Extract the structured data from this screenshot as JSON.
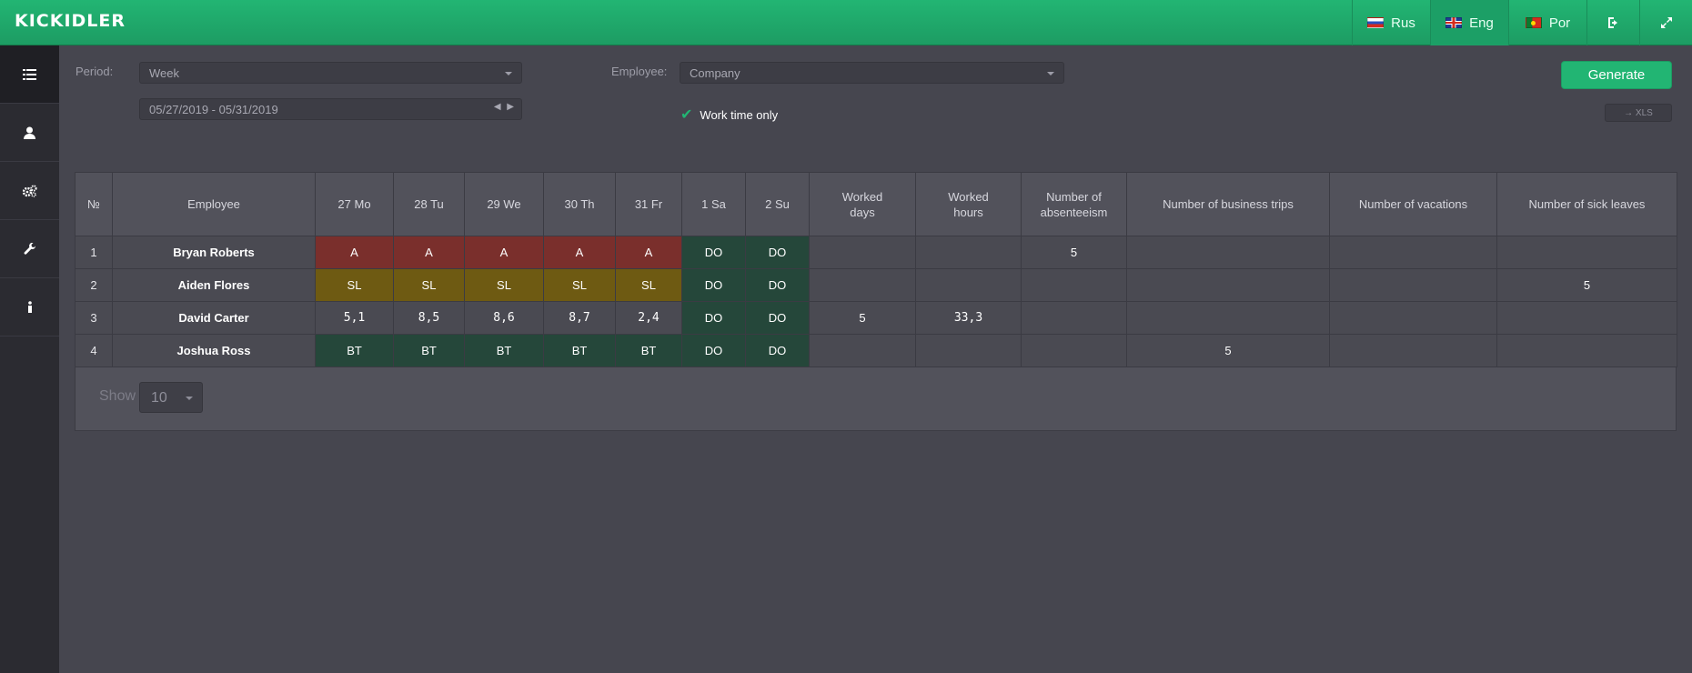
{
  "app": {
    "logo": "KICKIDLER"
  },
  "topnav": {
    "languages": [
      {
        "label": "Rus",
        "flag": "ru-flag-icon"
      },
      {
        "label": "Eng",
        "flag": "uk-flag-icon"
      },
      {
        "label": "Por",
        "flag": "pt-flag-icon"
      }
    ],
    "logout_icon": "logout-icon",
    "fullscreen_icon": "fullscreen-icon"
  },
  "sidebar": {
    "items": [
      {
        "icon": "list-icon"
      },
      {
        "icon": "user-icon"
      },
      {
        "icon": "gears-icon"
      },
      {
        "icon": "wrench-icon"
      },
      {
        "icon": "info-icon"
      }
    ]
  },
  "filters": {
    "period_label": "Period:",
    "period_value": "Week",
    "date_range": "05/27/2019 - 05/31/2019",
    "employee_label": "Employee:",
    "employee_value": "Company",
    "work_time_only": "Work time only",
    "generate_label": "Generate",
    "xls_label": "→ XLS"
  },
  "table": {
    "headers": {
      "no": "№",
      "employee": "Employee",
      "d1": "27 Mo",
      "d2": "28 Tu",
      "d3": "29 We",
      "d4": "30 Th",
      "d5": "31 Fr",
      "d6": "1 Sa",
      "d7": "2 Su",
      "worked_days_1": "Worked",
      "worked_days_2": "days",
      "worked_hours_1": "Worked",
      "worked_hours_2": "hours",
      "absenteeism_1": "Number of",
      "absenteeism_2": "absenteeism",
      "business_trips": "Number of business trips",
      "vacations": "Number of vacations",
      "sick_leaves": "Number of sick leaves"
    },
    "rows": [
      {
        "no": "1",
        "employee": "Bryan Roberts",
        "days": [
          "A",
          "A",
          "A",
          "A",
          "A",
          "DO",
          "DO"
        ],
        "worked_days": "",
        "worked_hours": "",
        "absenteeism": "5",
        "business_trips": "",
        "vacations": "",
        "sick_leaves": ""
      },
      {
        "no": "2",
        "employee": "Aiden Flores",
        "days": [
          "SL",
          "SL",
          "SL",
          "SL",
          "SL",
          "DO",
          "DO"
        ],
        "worked_days": "",
        "worked_hours": "",
        "absenteeism": "",
        "business_trips": "",
        "vacations": "",
        "sick_leaves": "5"
      },
      {
        "no": "3",
        "employee": "David Carter",
        "days": [
          "5,1",
          "8,5",
          "8,6",
          "8,7",
          "2,4",
          "DO",
          "DO"
        ],
        "worked_days": "5",
        "worked_hours": "33,3",
        "absenteeism": "",
        "business_trips": "",
        "vacations": "",
        "sick_leaves": ""
      },
      {
        "no": "4",
        "employee": "Joshua Ross",
        "days": [
          "BT",
          "BT",
          "BT",
          "BT",
          "BT",
          "DO",
          "DO"
        ],
        "worked_days": "",
        "worked_hours": "",
        "absenteeism": "",
        "business_trips": "5",
        "vacations": "",
        "sick_leaves": ""
      }
    ],
    "status_colors": {
      "A": "#7a2f2c",
      "SL": "#6e5a12",
      "BT": "#25473a",
      "DO": "#25473a"
    }
  },
  "pager": {
    "show_label": "Show",
    "show_value": "10"
  }
}
